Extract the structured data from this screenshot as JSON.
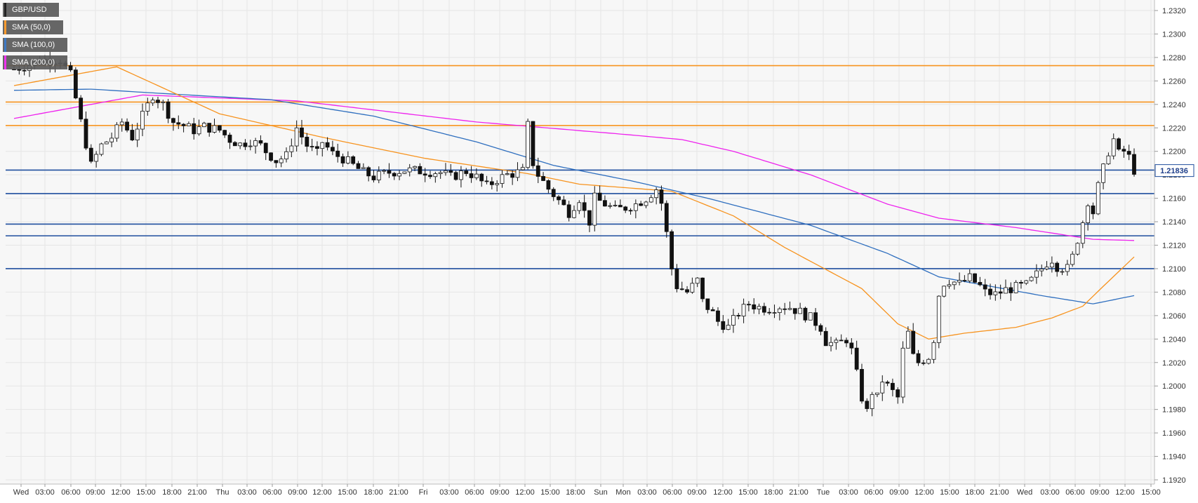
{
  "chart_data": {
    "type": "candlestick",
    "symbol": "GBP/USD",
    "last_price": "1.21836",
    "y_range": [
      1.192,
      1.232
    ],
    "y_ticks": [
      "1.2320",
      "1.2300",
      "1.2280",
      "1.2260",
      "1.2240",
      "1.2220",
      "1.2200",
      "1.2180",
      "1.2160",
      "1.2140",
      "1.2120",
      "1.2100",
      "1.2080",
      "1.2060",
      "1.2040",
      "1.2020",
      "1.2000",
      "1.1980",
      "1.1960",
      "1.1940",
      "1.1920"
    ],
    "x_tick_labels": [
      "Wed",
      "03:00",
      "06:00",
      "09:00",
      "12:00",
      "15:00",
      "18:00",
      "21:00",
      "Thu",
      "03:00",
      "06:00",
      "09:00",
      "12:00",
      "15:00",
      "18:00",
      "21:00",
      "Fri",
      "03:00",
      "06:00",
      "09:00",
      "12:00",
      "15:00",
      "18:00",
      "Sun",
      "Mon",
      "03:00",
      "06:00",
      "09:00",
      "12:00",
      "15:00",
      "18:00",
      "21:00",
      "Tue",
      "03:00",
      "06:00",
      "09:00",
      "12:00",
      "15:00",
      "18:00",
      "21:00",
      "Wed",
      "03:00",
      "06:00",
      "09:00",
      "12:00",
      "15:00"
    ],
    "legend": [
      {
        "label": "GBP/USD",
        "color": "#111111"
      },
      {
        "label": "SMA (50,0)",
        "color": "#f7931e"
      },
      {
        "label": "SMA (100,0)",
        "color": "#2f6fbf"
      },
      {
        "label": "SMA (200,0)",
        "color": "#ee22ee"
      }
    ],
    "resistance_levels": [
      1.2273,
      1.2242,
      1.2222
    ],
    "support_levels": [
      1.2184,
      1.2164,
      1.2138,
      1.2128,
      1.21
    ],
    "colors": {
      "resistance": "#f7931e",
      "support": "#1f4e9e",
      "up": "#ffffff",
      "down": "#111111",
      "grid": "#e6e6e6",
      "plot_bg": "#f7f7f7"
    },
    "price_path": [
      [
        0,
        1.227
      ],
      [
        6,
        1.2278
      ],
      [
        9,
        1.2278
      ],
      [
        11,
        1.2265
      ],
      [
        13,
        1.2225
      ],
      [
        15,
        1.2188
      ],
      [
        17,
        1.2205
      ],
      [
        19,
        1.2212
      ],
      [
        21,
        1.2225
      ],
      [
        23,
        1.2212
      ],
      [
        25,
        1.223
      ],
      [
        27,
        1.2248
      ],
      [
        29,
        1.224
      ],
      [
        31,
        1.2225
      ],
      [
        33,
        1.2222
      ],
      [
        35,
        1.2218
      ],
      [
        37,
        1.2221
      ],
      [
        40,
        1.2218
      ],
      [
        42,
        1.221
      ],
      [
        44,
        1.2206
      ],
      [
        46,
        1.2209
      ],
      [
        48,
        1.2205
      ],
      [
        49,
        1.22
      ],
      [
        51,
        1.2192
      ],
      [
        53,
        1.2196
      ],
      [
        55,
        1.222
      ],
      [
        57,
        1.2205
      ],
      [
        59,
        1.2198
      ],
      [
        60,
        1.2208
      ],
      [
        62,
        1.2198
      ],
      [
        64,
        1.2194
      ],
      [
        66,
        1.2188
      ],
      [
        68,
        1.2182
      ],
      [
        70,
        1.2178
      ],
      [
        73,
        1.2182
      ],
      [
        76,
        1.2184
      ],
      [
        80,
        1.2183
      ],
      [
        83,
        1.2182
      ],
      [
        85,
        1.2178
      ],
      [
        88,
        1.2183
      ],
      [
        90,
        1.2178
      ],
      [
        92,
        1.217
      ],
      [
        94,
        1.2176
      ],
      [
        96,
        1.218
      ],
      [
        99,
        1.2183
      ],
      [
        100,
        1.2222
      ],
      [
        101,
        1.219
      ],
      [
        102,
        1.218
      ],
      [
        104,
        1.2168
      ],
      [
        106,
        1.2158
      ],
      [
        108,
        1.2148
      ],
      [
        110,
        1.216
      ],
      [
        111,
        1.2148
      ],
      [
        112,
        1.214
      ],
      [
        113,
        1.216
      ],
      [
        115,
        1.2155
      ],
      [
        117,
        1.215
      ],
      [
        119,
        1.2152
      ],
      [
        121,
        1.2155
      ],
      [
        123,
        1.216
      ],
      [
        125,
        1.2168
      ],
      [
        126,
        1.2156
      ],
      [
        127,
        1.213
      ],
      [
        128,
        1.21
      ],
      [
        129,
        1.2085
      ],
      [
        131,
        1.208
      ],
      [
        133,
        1.209
      ],
      [
        134,
        1.2072
      ],
      [
        136,
        1.2062
      ],
      [
        137,
        1.2055
      ],
      [
        139,
        1.205
      ],
      [
        141,
        1.2062
      ],
      [
        143,
        1.207
      ],
      [
        145,
        1.2067
      ],
      [
        147,
        1.2066
      ],
      [
        149,
        1.2068
      ],
      [
        151,
        1.2067
      ],
      [
        153,
        1.2063
      ],
      [
        155,
        1.2058
      ],
      [
        157,
        1.205
      ],
      [
        158,
        1.2038
      ],
      [
        160,
        1.2035
      ],
      [
        162,
        1.204
      ],
      [
        163,
        1.203
      ],
      [
        164,
        1.201
      ],
      [
        165,
        1.199
      ],
      [
        166,
        1.1978
      ],
      [
        167,
        1.1995
      ],
      [
        168,
        1.199
      ],
      [
        169,
        1.2005
      ],
      [
        171,
        1.1995
      ],
      [
        172,
        1.199
      ],
      [
        173,
        1.203
      ],
      [
        174,
        1.2045
      ],
      [
        175,
        1.2025
      ],
      [
        176,
        1.202
      ],
      [
        178,
        1.2025
      ],
      [
        179,
        1.204
      ],
      [
        180,
        1.2078
      ],
      [
        181,
        1.2088
      ],
      [
        182,
        1.209
      ],
      [
        184,
        1.2087
      ],
      [
        186,
        1.2092
      ],
      [
        188,
        1.2085
      ],
      [
        189,
        1.208
      ],
      [
        191,
        1.2078
      ],
      [
        193,
        1.2082
      ],
      [
        195,
        1.2084
      ],
      [
        197,
        1.2086
      ],
      [
        198,
        1.209
      ],
      [
        199,
        1.2095
      ],
      [
        201,
        1.2105
      ],
      [
        202,
        1.2108
      ],
      [
        203,
        1.2102
      ],
      [
        205,
        1.21
      ],
      [
        206,
        1.211
      ],
      [
        207,
        1.2125
      ],
      [
        208,
        1.214
      ],
      [
        209,
        1.2158
      ],
      [
        210,
        1.2148
      ],
      [
        211,
        1.217
      ],
      [
        212,
        1.2185
      ],
      [
        213,
        1.22
      ],
      [
        214,
        1.221
      ],
      [
        215,
        1.2198
      ],
      [
        216,
        1.22
      ],
      [
        217,
        1.2195
      ],
      [
        218,
        1.2184
      ]
    ],
    "sma50": [
      [
        0,
        1.2256
      ],
      [
        20,
        1.2272
      ],
      [
        40,
        1.2232
      ],
      [
        60,
        1.2212
      ],
      [
        80,
        1.2194
      ],
      [
        100,
        1.2181
      ],
      [
        110,
        1.2172
      ],
      [
        128,
        1.2166
      ],
      [
        140,
        1.2145
      ],
      [
        150,
        1.2118
      ],
      [
        165,
        1.2083
      ],
      [
        172,
        1.2053
      ],
      [
        178,
        1.204
      ],
      [
        185,
        1.2045
      ],
      [
        195,
        1.205
      ],
      [
        202,
        1.2058
      ],
      [
        208,
        1.2068
      ],
      [
        212,
        1.2085
      ],
      [
        218,
        1.211
      ]
    ],
    "sma100": [
      [
        0,
        1.2252
      ],
      [
        15,
        1.2253
      ],
      [
        30,
        1.2249
      ],
      [
        50,
        1.2244
      ],
      [
        70,
        1.223
      ],
      [
        90,
        1.2208
      ],
      [
        105,
        1.2188
      ],
      [
        120,
        1.2175
      ],
      [
        135,
        1.216
      ],
      [
        155,
        1.2137
      ],
      [
        170,
        1.2113
      ],
      [
        180,
        1.2093
      ],
      [
        190,
        1.2085
      ],
      [
        200,
        1.2077
      ],
      [
        210,
        1.207
      ],
      [
        218,
        1.2077
      ]
    ],
    "sma200": [
      [
        0,
        1.2228
      ],
      [
        25,
        1.2248
      ],
      [
        55,
        1.2243
      ],
      [
        90,
        1.2225
      ],
      [
        120,
        1.2214
      ],
      [
        130,
        1.221
      ],
      [
        140,
        1.22
      ],
      [
        155,
        1.218
      ],
      [
        170,
        1.2155
      ],
      [
        180,
        1.2143
      ],
      [
        195,
        1.2135
      ],
      [
        210,
        1.2125
      ],
      [
        218,
        1.2124
      ]
    ]
  }
}
